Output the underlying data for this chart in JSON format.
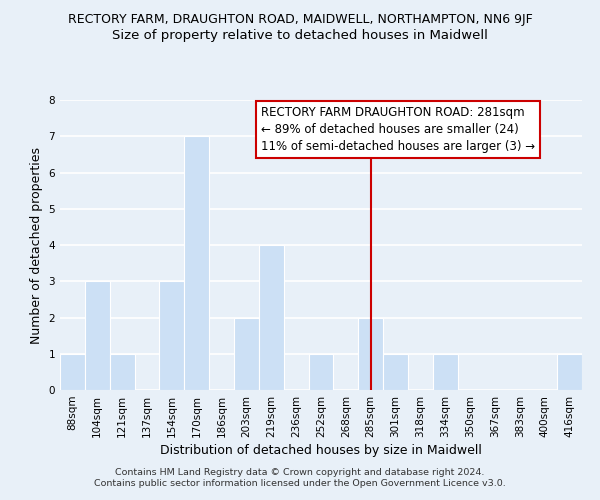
{
  "title": "RECTORY FARM, DRAUGHTON ROAD, MAIDWELL, NORTHAMPTON, NN6 9JF",
  "subtitle": "Size of property relative to detached houses in Maidwell",
  "xlabel": "Distribution of detached houses by size in Maidwell",
  "ylabel": "Number of detached properties",
  "bin_labels": [
    "88sqm",
    "104sqm",
    "121sqm",
    "137sqm",
    "154sqm",
    "170sqm",
    "186sqm",
    "203sqm",
    "219sqm",
    "236sqm",
    "252sqm",
    "268sqm",
    "285sqm",
    "301sqm",
    "318sqm",
    "334sqm",
    "350sqm",
    "367sqm",
    "383sqm",
    "400sqm",
    "416sqm"
  ],
  "bar_heights": [
    1,
    3,
    1,
    0,
    3,
    7,
    0,
    2,
    4,
    0,
    1,
    0,
    2,
    1,
    0,
    1,
    0,
    0,
    0,
    0,
    1
  ],
  "bar_color": "#cce0f5",
  "bar_edge_color": "#ffffff",
  "bar_linewidth": 0.8,
  "vline_x_index": 12,
  "vline_color": "#cc0000",
  "ylim": [
    0,
    8
  ],
  "yticks": [
    0,
    1,
    2,
    3,
    4,
    5,
    6,
    7,
    8
  ],
  "annotation_text": "RECTORY FARM DRAUGHTON ROAD: 281sqm\n← 89% of detached houses are smaller (24)\n11% of semi-detached houses are larger (3) →",
  "grid_color": "#ffffff",
  "bg_color": "#e8f0f8",
  "footer_line1": "Contains HM Land Registry data © Crown copyright and database right 2024.",
  "footer_line2": "Contains public sector information licensed under the Open Government Licence v3.0.",
  "title_fontsize": 9,
  "subtitle_fontsize": 9.5,
  "axis_label_fontsize": 9,
  "tick_fontsize": 7.5,
  "annotation_fontsize": 8.5,
  "footer_fontsize": 6.8
}
